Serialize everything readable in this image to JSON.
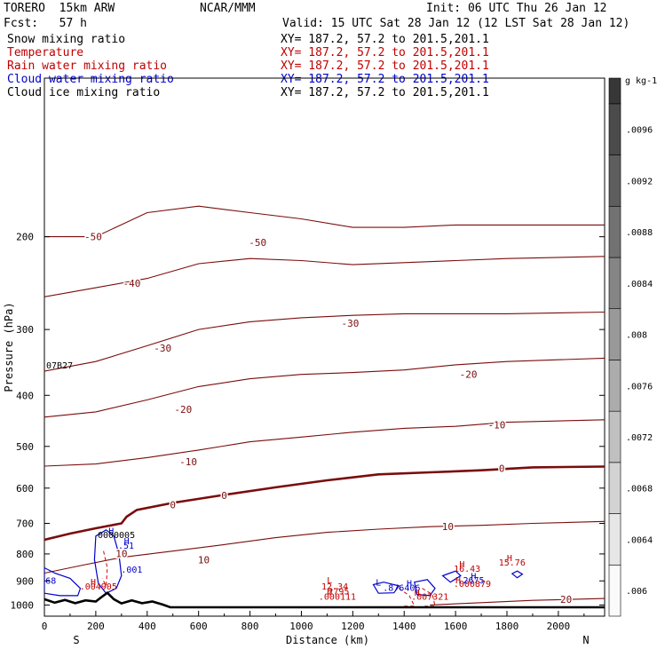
{
  "header": {
    "model": "TORERO  15km ARW",
    "center": "NCAR/MMM",
    "init": "Init: 06 UTC Thu 26 Jan 12",
    "fcst": "Fcst:   57 h",
    "valid": "Valid: 15 UTC Sat 28 Jan 12 (12 LST Sat 28 Jan 12)"
  },
  "legend": [
    {
      "label": "Snow mixing ratio",
      "xy": "XY= 187.2, 57.2 to 201.5,201.1",
      "color": "#000000"
    },
    {
      "label": "Temperature",
      "xy": "XY= 187.2, 57.2 to 201.5,201.1",
      "color": "#c00000"
    },
    {
      "label": "Rain water mixing ratio",
      "xy": "XY= 187.2, 57.2 to 201.5,201.1",
      "color": "#c00000"
    },
    {
      "label": "Cloud water mixing ratio",
      "xy": "XY= 187.2, 57.2 to 201.5,201.1",
      "color": "#0000cc"
    },
    {
      "label": "Cloud ice mixing ratio",
      "xy": "XY= 187.2, 57.2 to 201.5,201.1",
      "color": "#000000"
    }
  ],
  "chart_data": {
    "type": "line",
    "title": "",
    "xlabel": "Distance (km)",
    "ylabel": "Pressure (hPa)",
    "xlim": [
      0,
      2180
    ],
    "ylim": [
      1050,
      100
    ],
    "y_scale": "log",
    "x_ticks": [
      0,
      200,
      400,
      600,
      800,
      1000,
      1200,
      1400,
      1600,
      1800,
      2000
    ],
    "y_ticks": [
      200,
      300,
      400,
      500,
      600,
      700,
      800,
      900,
      1000
    ],
    "endpoint_labels": {
      "left": "S",
      "right": "N"
    },
    "left_annotation": "07B27",
    "colorbar": {
      "unit": "g kg-1",
      "ticks": [
        ".006",
        ".0064",
        ".0068",
        ".0072",
        ".0076",
        ".008",
        ".0084",
        ".0088",
        ".0092",
        ".0096"
      ],
      "values": [
        0.006,
        0.0064,
        0.0068,
        0.0072,
        0.0076,
        0.008,
        0.0084,
        0.0088,
        0.0092,
        0.0096
      ]
    },
    "terrain": [
      [
        0,
        975
      ],
      [
        40,
        990
      ],
      [
        80,
        978
      ],
      [
        120,
        992
      ],
      [
        160,
        980
      ],
      [
        200,
        985
      ],
      [
        220,
        968
      ],
      [
        245,
        948
      ],
      [
        270,
        975
      ],
      [
        300,
        993
      ],
      [
        340,
        980
      ],
      [
        380,
        992
      ],
      [
        420,
        985
      ],
      [
        460,
        998
      ],
      [
        490,
        1010
      ],
      [
        700,
        1010
      ],
      [
        1200,
        1010
      ],
      [
        1700,
        1010
      ],
      [
        2180,
        1010
      ]
    ],
    "temperature_isotherms": [
      {
        "label": "-50",
        "label_x": 190,
        "label_p": 200,
        "points": [
          [
            0,
            200
          ],
          [
            200,
            200
          ],
          [
            400,
            180
          ],
          [
            600,
            175
          ],
          [
            800,
            180
          ],
          [
            1000,
            185
          ],
          [
            1200,
            192
          ],
          [
            1400,
            192
          ],
          [
            1600,
            190
          ],
          [
            1800,
            190
          ],
          [
            2180,
            190
          ]
        ]
      },
      {
        "label": "-40",
        "label_x": 340,
        "label_p": 245,
        "points": [
          [
            0,
            260
          ],
          [
            200,
            250
          ],
          [
            400,
            240
          ],
          [
            600,
            225
          ],
          [
            800,
            220
          ],
          [
            1000,
            222
          ],
          [
            1200,
            226
          ],
          [
            1400,
            224
          ],
          [
            1600,
            222
          ],
          [
            1800,
            220
          ],
          [
            2180,
            218
          ]
        ]
      },
      {
        "label": "-30",
        "label_x": 460,
        "label_p": 325,
        "points": [
          [
            0,
            360
          ],
          [
            200,
            345
          ],
          [
            400,
            322
          ],
          [
            600,
            300
          ],
          [
            800,
            290
          ],
          [
            1000,
            285
          ],
          [
            1200,
            282
          ],
          [
            1400,
            280
          ],
          [
            1600,
            280
          ],
          [
            1800,
            280
          ],
          [
            2180,
            278
          ]
        ]
      },
      {
        "label": "-20",
        "label_x": 540,
        "label_p": 425,
        "points": [
          [
            0,
            440
          ],
          [
            200,
            430
          ],
          [
            400,
            408
          ],
          [
            600,
            385
          ],
          [
            800,
            372
          ],
          [
            1000,
            365
          ],
          [
            1200,
            362
          ],
          [
            1400,
            358
          ],
          [
            1600,
            350
          ],
          [
            1800,
            345
          ],
          [
            2180,
            340
          ]
        ]
      },
      {
        "label": "-10",
        "label_x": 560,
        "label_p": 535,
        "points": [
          [
            0,
            545
          ],
          [
            200,
            540
          ],
          [
            400,
            525
          ],
          [
            600,
            508
          ],
          [
            800,
            490
          ],
          [
            1000,
            480
          ],
          [
            1200,
            470
          ],
          [
            1400,
            462
          ],
          [
            1600,
            458
          ],
          [
            1800,
            450
          ],
          [
            2180,
            445
          ]
        ]
      },
      {
        "label": "0",
        "label_x": 500,
        "label_p": 645,
        "freezing_level": true,
        "points": [
          [
            0,
            752
          ],
          [
            100,
            732
          ],
          [
            200,
            715
          ],
          [
            300,
            700
          ],
          [
            320,
            680
          ],
          [
            360,
            660
          ],
          [
            500,
            640
          ],
          [
            700,
            618
          ],
          [
            900,
            598
          ],
          [
            1100,
            580
          ],
          [
            1300,
            565
          ],
          [
            1500,
            560
          ],
          [
            1700,
            555
          ],
          [
            1900,
            548
          ],
          [
            2180,
            546
          ]
        ]
      },
      {
        "label": "10",
        "label_x": 1570,
        "label_p": 710,
        "points": [
          [
            0,
            870
          ],
          [
            150,
            840
          ],
          [
            300,
            812
          ],
          [
            500,
            790
          ],
          [
            700,
            768
          ],
          [
            900,
            745
          ],
          [
            1100,
            728
          ],
          [
            1300,
            718
          ],
          [
            1500,
            710
          ],
          [
            1700,
            706
          ],
          [
            1900,
            700
          ],
          [
            2180,
            694
          ]
        ]
      },
      {
        "label": "20",
        "label_x": 2030,
        "label_p": 975,
        "points": [
          [
            1500,
            1000
          ],
          [
            1700,
            990
          ],
          [
            1900,
            980
          ],
          [
            2180,
            972
          ]
        ]
      }
    ],
    "extra_contour_labels": [
      {
        "text": "-50",
        "x": 830,
        "p": 205
      },
      {
        "text": "-30",
        "x": 1190,
        "p": 292
      },
      {
        "text": "-20",
        "x": 1650,
        "p": 365
      },
      {
        "text": "-10",
        "x": 1760,
        "p": 455
      },
      {
        "text": "0",
        "x": 700,
        "p": 620
      },
      {
        "text": "0",
        "x": 1780,
        "p": 550
      },
      {
        "text": "10",
        "x": 300,
        "p": 798
      },
      {
        "text": "10",
        "x": 620,
        "p": 820
      }
    ],
    "cloud_water_contours": [
      {
        "points": [
          [
            200,
            740
          ],
          [
            240,
            720
          ],
          [
            270,
            740
          ],
          [
            290,
            800
          ],
          [
            300,
            880
          ],
          [
            280,
            930
          ],
          [
            240,
            950
          ],
          [
            210,
            910
          ],
          [
            195,
            820
          ]
        ]
      },
      {
        "points": [
          [
            0,
            850
          ],
          [
            40,
            870
          ],
          [
            100,
            890
          ],
          [
            140,
            930
          ],
          [
            130,
            960
          ],
          [
            60,
            960
          ],
          [
            0,
            950
          ]
        ]
      },
      {
        "points": [
          [
            1280,
            915
          ],
          [
            1320,
            905
          ],
          [
            1380,
            920
          ],
          [
            1360,
            948
          ],
          [
            1300,
            950
          ]
        ]
      },
      {
        "points": [
          [
            1440,
            905
          ],
          [
            1490,
            895
          ],
          [
            1520,
            930
          ],
          [
            1500,
            960
          ],
          [
            1450,
            955
          ]
        ]
      },
      {
        "points": [
          [
            1550,
            880
          ],
          [
            1600,
            862
          ],
          [
            1620,
            880
          ],
          [
            1580,
            905
          ]
        ]
      },
      {
        "points": [
          [
            1820,
            872
          ],
          [
            1840,
            862
          ],
          [
            1860,
            874
          ],
          [
            1840,
            888
          ]
        ]
      }
    ],
    "rain_water_contours": [
      {
        "points": [
          [
            230,
            790
          ],
          [
            245,
            850
          ],
          [
            240,
            920
          ],
          [
            225,
            890
          ]
        ]
      },
      {
        "points": [
          [
            1380,
            930
          ],
          [
            1420,
            960
          ],
          [
            1440,
            1005
          ],
          [
            1390,
            1005
          ]
        ]
      },
      {
        "points": [
          [
            1470,
            930
          ],
          [
            1510,
            955
          ],
          [
            1520,
            1005
          ],
          [
            1480,
            1005
          ]
        ]
      }
    ],
    "max_min_annotations": [
      {
        "text": "H",
        "x": 260,
        "p": 722,
        "color": "#0000cc"
      },
      {
        "text": "0000005",
        "x": 280,
        "p": 735,
        "color": "#000000"
      },
      {
        "text": "H",
        "x": 320,
        "p": 755,
        "color": "#0000cc"
      },
      {
        "text": ".51",
        "x": 318,
        "p": 770,
        "color": "#0000cc"
      },
      {
        "text": ".001",
        "x": 340,
        "p": 855,
        "color": "#0000cc"
      },
      {
        "text": "H",
        "x": 190,
        "p": 903,
        "color": "#c00000"
      },
      {
        "text": ".004905",
        "x": 210,
        "p": 920,
        "color": "#c00000"
      },
      {
        "text": "68",
        "x": 25,
        "p": 897,
        "color": "#0000cc"
      },
      {
        "text": "L",
        "x": 1110,
        "p": 895,
        "color": "#c00000"
      },
      {
        "text": "12.34",
        "x": 1130,
        "p": 920,
        "color": "#c00000"
      },
      {
        "text": "H",
        "x": 1110,
        "p": 940,
        "color": "#c00000"
      },
      {
        "text": "2795",
        "x": 1145,
        "p": 940,
        "color": "#c00000"
      },
      {
        "text": ".000111",
        "x": 1140,
        "p": 962,
        "color": "#c00000"
      },
      {
        "text": "L",
        "x": 1300,
        "p": 905,
        "color": "#0000cc"
      },
      {
        "text": "H",
        "x": 1420,
        "p": 908,
        "color": "#0000cc"
      },
      {
        "text": ".876406",
        "x": 1390,
        "p": 925,
        "color": "#0000cc"
      },
      {
        "text": "H",
        "x": 1450,
        "p": 945,
        "color": "#c00000"
      },
      {
        "text": ".007321",
        "x": 1500,
        "p": 962,
        "color": "#c00000"
      },
      {
        "text": "H",
        "x": 1625,
        "p": 835,
        "color": "#c00000"
      },
      {
        "text": "16.43",
        "x": 1645,
        "p": 852,
        "color": "#c00000"
      },
      {
        "text": "H",
        "x": 1810,
        "p": 812,
        "color": "#c00000"
      },
      {
        "text": "15.76",
        "x": 1820,
        "p": 828,
        "color": "#c00000"
      },
      {
        "text": "H",
        "x": 1670,
        "p": 880,
        "color": "#0000cc"
      },
      {
        "text": "H",
        "x": 1610,
        "p": 895,
        "color": "#c00000"
      },
      {
        "text": ".2675",
        "x": 1660,
        "p": 895,
        "color": "#0000cc"
      },
      {
        "text": ".000879",
        "x": 1665,
        "p": 910,
        "color": "#c00000"
      }
    ]
  }
}
